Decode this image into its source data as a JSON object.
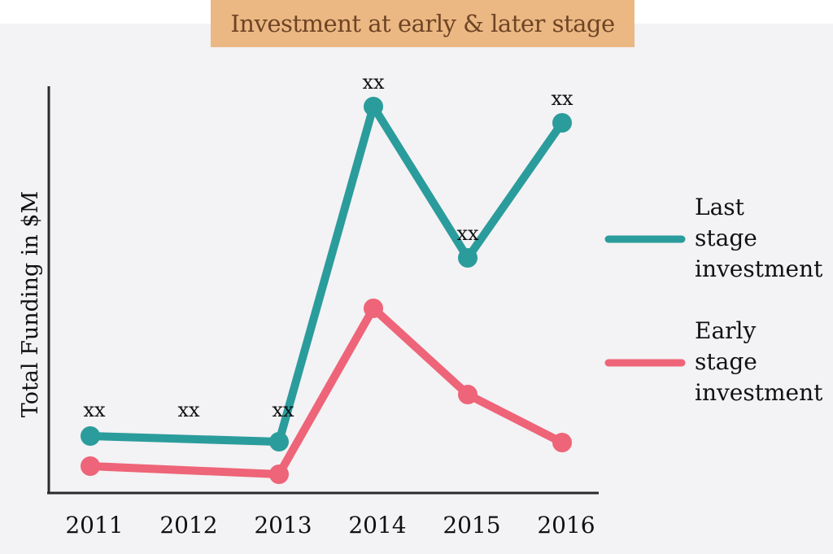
{
  "chart_data": {
    "type": "line",
    "title": "Investment at early & later stage",
    "xlabel": "",
    "ylabel": "Total Funding in $M",
    "categories": [
      "2011",
      "2012",
      "2013",
      "2014",
      "2015",
      "2016"
    ],
    "ylim": [
      0,
      100
    ],
    "grid": false,
    "legend_position": "right",
    "series": [
      {
        "name": "Last stage investment",
        "name_lines": [
          "Last",
          "stage",
          "investment"
        ],
        "color": "#2b9c9c",
        "x": [
          "2011",
          "2013",
          "2014",
          "2015",
          "2016"
        ],
        "values": [
          14,
          12.6,
          95,
          57.8,
          91
        ],
        "data_labels": [
          "xx",
          "xx",
          "xx",
          "xx",
          "xx"
        ]
      },
      {
        "name": "Early stage investment",
        "name_lines": [
          "Early",
          "stage",
          "investment"
        ],
        "color": "#ee6478",
        "x": [
          "2011",
          "2013",
          "2014",
          "2015",
          "2016"
        ],
        "values": [
          6.6,
          4.6,
          45.4,
          24.2,
          12.4
        ]
      }
    ],
    "annotations": [
      {
        "x": "2011",
        "text": "xx"
      },
      {
        "x": "2012",
        "text": "xx"
      },
      {
        "x": "2013",
        "text": "xx"
      }
    ]
  }
}
